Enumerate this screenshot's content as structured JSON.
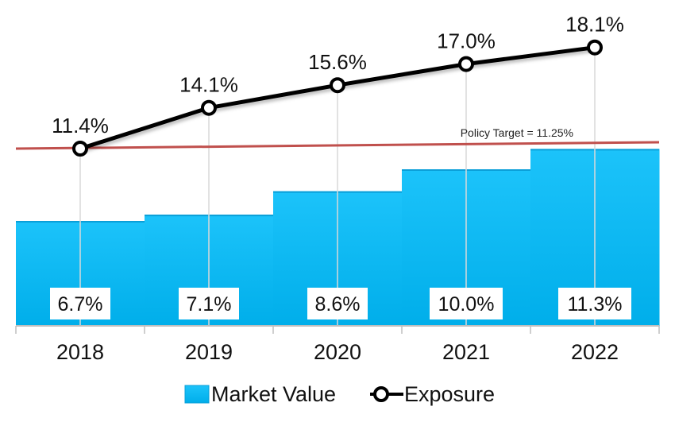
{
  "chart_data": {
    "type": "bar",
    "categories": [
      "2018",
      "2019",
      "2020",
      "2021",
      "2022"
    ],
    "series": [
      {
        "name": "Market Value",
        "type": "bar",
        "values": [
          6.7,
          7.1,
          8.6,
          10.0,
          11.3
        ],
        "labels": [
          "6.7%",
          "7.1%",
          "8.6%",
          "10.0%",
          "11.3%"
        ],
        "color": "#00B4F0"
      },
      {
        "name": "Exposure",
        "type": "line",
        "values": [
          11.4,
          14.1,
          15.6,
          17.0,
          18.1
        ],
        "labels": [
          "11.4%",
          "14.1%",
          "15.6%",
          "17.0%",
          "18.1%"
        ],
        "color": "#000000"
      }
    ],
    "reference_line": {
      "label": "Policy Target = 11.25%",
      "value": 11.25,
      "color": "#C0504D"
    },
    "legend": {
      "position": "bottom"
    },
    "grid": false
  }
}
